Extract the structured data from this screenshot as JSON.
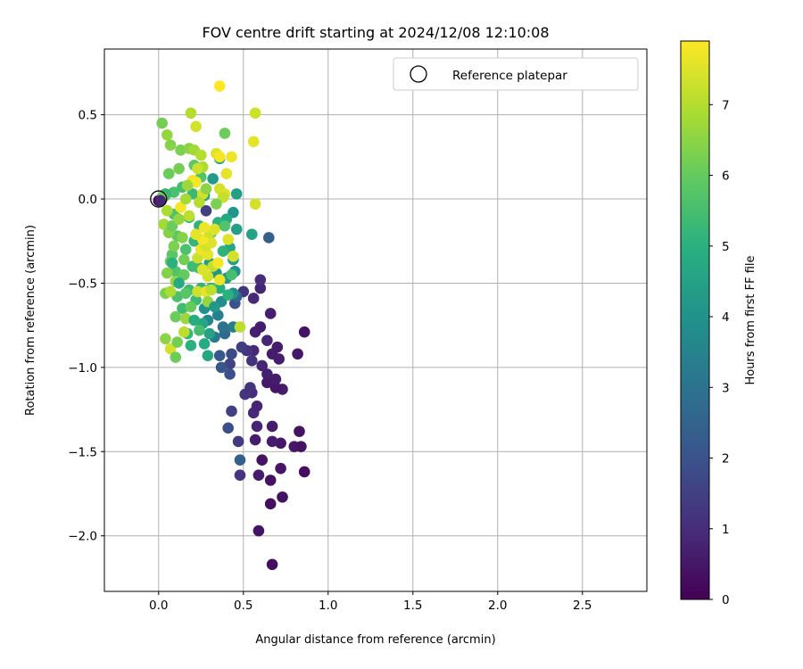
{
  "chart_data": {
    "type": "scatter",
    "title": "FOV centre drift starting at 2024/12/08 12:10:08",
    "xlabel": "Angular distance from reference (arcmin)",
    "ylabel": "Rotation from reference (arcmin)",
    "xlim": [
      -0.32,
      2.88
    ],
    "ylim": [
      -2.33,
      0.89
    ],
    "x_ticks": [
      0.0,
      0.5,
      1.0,
      1.5,
      2.0,
      2.5
    ],
    "x_tick_labels": [
      "0.0",
      "0.5",
      "1.0",
      "1.5",
      "2.0",
      "2.5"
    ],
    "y_ticks": [
      0.5,
      0.0,
      -0.5,
      -1.0,
      -1.5,
      -2.0
    ],
    "y_tick_labels": [
      "0.5",
      "0.0",
      "−0.5",
      "−1.0",
      "−1.5",
      "−2.0"
    ],
    "grid": true,
    "legend": {
      "placement": "top-right",
      "entries": [
        {
          "label": "Reference platepar",
          "marker": "open-circle"
        }
      ]
    },
    "reference_point": {
      "x": 0.0,
      "y": 0.0
    },
    "colorbar": {
      "label": "Hours from first FF file",
      "range": [
        0,
        7.9
      ],
      "ticks": [
        0,
        1,
        2,
        3,
        4,
        5,
        6,
        7
      ],
      "colormap": "viridis"
    },
    "points": [
      {
        "x": 0.0,
        "y": -0.01,
        "h": 0.05
      },
      {
        "x": 0.67,
        "y": -2.17,
        "h": 0.3
      },
      {
        "x": 0.59,
        "y": -1.97,
        "h": 0.4
      },
      {
        "x": 0.66,
        "y": -1.81,
        "h": 0.3
      },
      {
        "x": 0.73,
        "y": -1.77,
        "h": 0.4
      },
      {
        "x": 0.66,
        "y": -1.67,
        "h": 0.4
      },
      {
        "x": 0.59,
        "y": -1.64,
        "h": 0.6
      },
      {
        "x": 0.86,
        "y": -1.62,
        "h": 0.3
      },
      {
        "x": 0.72,
        "y": -1.6,
        "h": 0.5
      },
      {
        "x": 0.61,
        "y": -1.55,
        "h": 0.4
      },
      {
        "x": 0.8,
        "y": -1.47,
        "h": 0.5
      },
      {
        "x": 0.84,
        "y": -1.47,
        "h": 0.4
      },
      {
        "x": 0.72,
        "y": -1.45,
        "h": 0.5
      },
      {
        "x": 0.67,
        "y": -1.44,
        "h": 0.6
      },
      {
        "x": 0.57,
        "y": -1.43,
        "h": 0.6
      },
      {
        "x": 0.83,
        "y": -1.38,
        "h": 0.4
      },
      {
        "x": 0.67,
        "y": -1.35,
        "h": 0.6
      },
      {
        "x": 0.58,
        "y": -1.35,
        "h": 0.8
      },
      {
        "x": 0.56,
        "y": -1.27,
        "h": 0.9
      },
      {
        "x": 0.58,
        "y": -1.23,
        "h": 0.8
      },
      {
        "x": 0.73,
        "y": -1.13,
        "h": 0.6
      },
      {
        "x": 0.69,
        "y": -1.12,
        "h": 0.5
      },
      {
        "x": 0.64,
        "y": -1.09,
        "h": 0.5
      },
      {
        "x": 0.69,
        "y": -1.07,
        "h": 0.6
      },
      {
        "x": 0.55,
        "y": -1.15,
        "h": 1.0
      },
      {
        "x": 0.51,
        "y": -1.16,
        "h": 1.2
      },
      {
        "x": 0.54,
        "y": -1.12,
        "h": 1.1
      },
      {
        "x": 0.64,
        "y": -1.04,
        "h": 0.7
      },
      {
        "x": 0.61,
        "y": -0.99,
        "h": 0.8
      },
      {
        "x": 0.71,
        "y": -0.95,
        "h": 0.6
      },
      {
        "x": 0.82,
        "y": -0.92,
        "h": 0.5
      },
      {
        "x": 0.67,
        "y": -0.92,
        "h": 0.6
      },
      {
        "x": 0.56,
        "y": -0.9,
        "h": 0.9
      },
      {
        "x": 0.52,
        "y": -0.9,
        "h": 1.2
      },
      {
        "x": 0.7,
        "y": -0.88,
        "h": 0.6
      },
      {
        "x": 0.64,
        "y": -0.84,
        "h": 0.8
      },
      {
        "x": 0.55,
        "y": -0.96,
        "h": 1.1
      },
      {
        "x": 0.57,
        "y": -0.79,
        "h": 0.7
      },
      {
        "x": 0.6,
        "y": -0.76,
        "h": 0.6
      },
      {
        "x": 0.86,
        "y": -0.79,
        "h": 0.4
      },
      {
        "x": 0.66,
        "y": -0.68,
        "h": 0.7
      },
      {
        "x": 0.56,
        "y": -0.59,
        "h": 0.9
      },
      {
        "x": 0.6,
        "y": -0.53,
        "h": 0.8
      },
      {
        "x": 0.6,
        "y": -0.48,
        "h": 1.0
      },
      {
        "x": 0.5,
        "y": -0.55,
        "h": 1.2
      },
      {
        "x": 0.42,
        "y": -0.98,
        "h": 1.6
      },
      {
        "x": 0.36,
        "y": -0.93,
        "h": 2.2
      },
      {
        "x": 0.43,
        "y": -0.92,
        "h": 1.8
      },
      {
        "x": 0.49,
        "y": -0.88,
        "h": 1.4
      },
      {
        "x": 0.42,
        "y": -1.04,
        "h": 1.9
      },
      {
        "x": 0.37,
        "y": -1.0,
        "h": 2.1
      },
      {
        "x": 0.43,
        "y": -1.26,
        "h": 1.5
      },
      {
        "x": 0.41,
        "y": -1.36,
        "h": 1.9
      },
      {
        "x": 0.47,
        "y": -1.44,
        "h": 1.3
      },
      {
        "x": 0.48,
        "y": -1.55,
        "h": 2.4
      },
      {
        "x": 0.48,
        "y": -1.64,
        "h": 1.2
      },
      {
        "x": 0.65,
        "y": -0.23,
        "h": 2.4
      },
      {
        "x": 0.55,
        "y": -0.21,
        "h": 4.5
      },
      {
        "x": 0.45,
        "y": -0.62,
        "h": 2.0
      },
      {
        "x": 0.46,
        "y": -0.58,
        "h": 2.6
      },
      {
        "x": 0.39,
        "y": -0.8,
        "h": 2.7
      },
      {
        "x": 0.33,
        "y": -0.82,
        "h": 3.2
      },
      {
        "x": 0.38,
        "y": -0.76,
        "h": 3.0
      },
      {
        "x": 0.44,
        "y": -0.76,
        "h": 3.3
      },
      {
        "x": 0.35,
        "y": -0.69,
        "h": 3.4
      },
      {
        "x": 0.29,
        "y": -0.72,
        "h": 3.6
      },
      {
        "x": 0.27,
        "y": -0.65,
        "h": 4.0
      },
      {
        "x": 0.37,
        "y": -0.61,
        "h": 3.8
      },
      {
        "x": 0.44,
        "y": -0.56,
        "h": 3.9
      },
      {
        "x": 0.4,
        "y": -0.47,
        "h": 4.2
      },
      {
        "x": 0.34,
        "y": -0.44,
        "h": 4.1
      },
      {
        "x": 0.45,
        "y": -0.43,
        "h": 4.0
      },
      {
        "x": 0.3,
        "y": -0.38,
        "h": 4.4
      },
      {
        "x": 0.44,
        "y": -0.36,
        "h": 4.3
      },
      {
        "x": 0.42,
        "y": -0.29,
        "h": 4.6
      },
      {
        "x": 0.46,
        "y": -0.18,
        "h": 4.4
      },
      {
        "x": 0.44,
        "y": -0.08,
        "h": 4.1
      },
      {
        "x": 0.4,
        "y": -0.12,
        "h": 4.7
      },
      {
        "x": 0.46,
        "y": 0.03,
        "h": 4.4
      },
      {
        "x": 0.32,
        "y": 0.12,
        "h": 4.3
      },
      {
        "x": 0.36,
        "y": 0.24,
        "h": 4.5
      },
      {
        "x": 0.27,
        "y": 0.02,
        "h": 4.8
      },
      {
        "x": 0.28,
        "y": -0.07,
        "h": 1.5
      },
      {
        "x": 0.35,
        "y": -0.14,
        "h": 5.0
      },
      {
        "x": 0.31,
        "y": -0.2,
        "h": 5.3
      },
      {
        "x": 0.38,
        "y": -0.31,
        "h": 5.1
      },
      {
        "x": 0.24,
        "y": -0.41,
        "h": 5.2
      },
      {
        "x": 0.36,
        "y": -0.53,
        "h": 4.9
      },
      {
        "x": 0.31,
        "y": -0.53,
        "h": 5.0
      },
      {
        "x": 0.25,
        "y": -0.53,
        "h": 5.1
      },
      {
        "x": 0.22,
        "y": -0.6,
        "h": 5.3
      },
      {
        "x": 0.26,
        "y": -0.74,
        "h": 4.6
      },
      {
        "x": 0.3,
        "y": -0.8,
        "h": 4.5
      },
      {
        "x": 0.19,
        "y": -0.87,
        "h": 5.0
      },
      {
        "x": 0.27,
        "y": -0.86,
        "h": 4.8
      },
      {
        "x": 0.29,
        "y": -0.93,
        "h": 4.7
      },
      {
        "x": 0.24,
        "y": -0.78,
        "h": 5.5
      },
      {
        "x": 0.17,
        "y": -0.8,
        "h": 5.2
      },
      {
        "x": 0.14,
        "y": -0.65,
        "h": 5.4
      },
      {
        "x": 0.11,
        "y": -0.58,
        "h": 5.6
      },
      {
        "x": 0.18,
        "y": -0.54,
        "h": 5.3
      },
      {
        "x": 0.13,
        "y": -0.46,
        "h": 5.5
      },
      {
        "x": 0.1,
        "y": -0.43,
        "h": 5.7
      },
      {
        "x": 0.2,
        "y": -0.4,
        "h": 5.4
      },
      {
        "x": 0.16,
        "y": -0.3,
        "h": 5.6
      },
      {
        "x": 0.08,
        "y": -0.33,
        "h": 5.8
      },
      {
        "x": 0.11,
        "y": -0.22,
        "h": 5.9
      },
      {
        "x": 0.21,
        "y": -0.25,
        "h": 5.2
      },
      {
        "x": 0.24,
        "y": -0.16,
        "h": 5.1
      },
      {
        "x": 0.18,
        "y": -0.11,
        "h": 5.4
      },
      {
        "x": 0.09,
        "y": -0.09,
        "h": 5.7
      },
      {
        "x": 0.04,
        "y": 0.02,
        "h": 5.9
      },
      {
        "x": 0.09,
        "y": 0.04,
        "h": 5.6
      },
      {
        "x": 0.14,
        "y": 0.07,
        "h": 5.5
      },
      {
        "x": 0.2,
        "y": 0.03,
        "h": 5.3
      },
      {
        "x": 0.25,
        "y": 0.13,
        "h": 5.7
      },
      {
        "x": 0.21,
        "y": 0.2,
        "h": 5.9
      },
      {
        "x": 0.12,
        "y": 0.18,
        "h": 6.2
      },
      {
        "x": 0.06,
        "y": 0.15,
        "h": 6.1
      },
      {
        "x": 0.13,
        "y": 0.29,
        "h": 6.3
      },
      {
        "x": 0.07,
        "y": 0.32,
        "h": 6.4
      },
      {
        "x": 0.05,
        "y": 0.38,
        "h": 6.6
      },
      {
        "x": 0.02,
        "y": 0.45,
        "h": 6.2
      },
      {
        "x": 0.18,
        "y": 0.3,
        "h": 6.5
      },
      {
        "x": 0.21,
        "y": 0.29,
        "h": 6.8
      },
      {
        "x": 0.25,
        "y": 0.26,
        "h": 7.0
      },
      {
        "x": 0.19,
        "y": 0.51,
        "h": 7.0
      },
      {
        "x": 0.22,
        "y": 0.43,
        "h": 7.4
      },
      {
        "x": 0.39,
        "y": 0.39,
        "h": 6.1
      },
      {
        "x": 0.36,
        "y": 0.67,
        "h": 7.9
      },
      {
        "x": 0.57,
        "y": 0.51,
        "h": 7.3
      },
      {
        "x": 0.56,
        "y": 0.34,
        "h": 7.6
      },
      {
        "x": 0.34,
        "y": 0.27,
        "h": 7.5
      },
      {
        "x": 0.36,
        "y": 0.25,
        "h": 7.8
      },
      {
        "x": 0.43,
        "y": 0.25,
        "h": 7.7
      },
      {
        "x": 0.4,
        "y": 0.15,
        "h": 7.6
      },
      {
        "x": 0.26,
        "y": 0.19,
        "h": 6.9
      },
      {
        "x": 0.23,
        "y": 0.18,
        "h": 7.3
      },
      {
        "x": 0.2,
        "y": 0.11,
        "h": 7.7
      },
      {
        "x": 0.22,
        "y": 0.1,
        "h": 7.8
      },
      {
        "x": 0.36,
        "y": 0.06,
        "h": 7.4
      },
      {
        "x": 0.39,
        "y": 0.03,
        "h": 7.5
      },
      {
        "x": 0.38,
        "y": 0.01,
        "h": 7.2
      },
      {
        "x": 0.26,
        "y": 0.03,
        "h": 7.4
      },
      {
        "x": 0.57,
        "y": -0.03,
        "h": 7.4
      },
      {
        "x": 0.13,
        "y": -0.05,
        "h": 7.8
      },
      {
        "x": 0.18,
        "y": -0.1,
        "h": 7.1
      },
      {
        "x": 0.05,
        "y": -0.07,
        "h": 6.9
      },
      {
        "x": 0.03,
        "y": -0.15,
        "h": 6.8
      },
      {
        "x": 0.06,
        "y": -0.2,
        "h": 6.4
      },
      {
        "x": 0.08,
        "y": -0.16,
        "h": 6.1
      },
      {
        "x": 0.09,
        "y": -0.28,
        "h": 6.3
      },
      {
        "x": 0.07,
        "y": -0.37,
        "h": 6.0
      },
      {
        "x": 0.05,
        "y": -0.44,
        "h": 6.4
      },
      {
        "x": 0.1,
        "y": -0.49,
        "h": 6.6
      },
      {
        "x": 0.04,
        "y": -0.56,
        "h": 6.3
      },
      {
        "x": 0.07,
        "y": -0.55,
        "h": 6.9
      },
      {
        "x": 0.1,
        "y": -0.7,
        "h": 6.1
      },
      {
        "x": 0.16,
        "y": -0.71,
        "h": 6.7
      },
      {
        "x": 0.15,
        "y": -0.79,
        "h": 7.1
      },
      {
        "x": 0.04,
        "y": -0.83,
        "h": 6.5
      },
      {
        "x": 0.07,
        "y": -0.89,
        "h": 7.4
      },
      {
        "x": 0.11,
        "y": -0.85,
        "h": 6.2
      },
      {
        "x": 0.1,
        "y": -0.94,
        "h": 6.1
      },
      {
        "x": 0.23,
        "y": -0.55,
        "h": 7.3
      },
      {
        "x": 0.28,
        "y": -0.55,
        "h": 7.6
      },
      {
        "x": 0.31,
        "y": -0.54,
        "h": 7.1
      },
      {
        "x": 0.36,
        "y": -0.48,
        "h": 7.7
      },
      {
        "x": 0.29,
        "y": -0.46,
        "h": 7.4
      },
      {
        "x": 0.26,
        "y": -0.42,
        "h": 7.5
      },
      {
        "x": 0.32,
        "y": -0.4,
        "h": 7.2
      },
      {
        "x": 0.35,
        "y": -0.38,
        "h": 7.8
      },
      {
        "x": 0.23,
        "y": -0.35,
        "h": 7.3
      },
      {
        "x": 0.29,
        "y": -0.33,
        "h": 7.6
      },
      {
        "x": 0.25,
        "y": -0.3,
        "h": 7.7
      },
      {
        "x": 0.28,
        "y": -0.28,
        "h": 7.4
      },
      {
        "x": 0.31,
        "y": -0.26,
        "h": 7.5
      },
      {
        "x": 0.26,
        "y": -0.24,
        "h": 7.8
      },
      {
        "x": 0.22,
        "y": -0.21,
        "h": 7.6
      },
      {
        "x": 0.3,
        "y": -0.2,
        "h": 7.3
      },
      {
        "x": 0.33,
        "y": -0.18,
        "h": 7.5
      },
      {
        "x": 0.27,
        "y": -0.17,
        "h": 7.7
      },
      {
        "x": 0.41,
        "y": -0.24,
        "h": 7.5
      },
      {
        "x": 0.44,
        "y": -0.34,
        "h": 7.4
      },
      {
        "x": 0.48,
        "y": -0.76,
        "h": 7.1
      },
      {
        "x": 0.29,
        "y": -0.61,
        "h": 6.6
      },
      {
        "x": 0.19,
        "y": -0.64,
        "h": 6.0
      },
      {
        "x": 0.16,
        "y": -0.56,
        "h": 5.8
      },
      {
        "x": 0.15,
        "y": -0.45,
        "h": 6.0
      },
      {
        "x": 0.15,
        "y": -0.36,
        "h": 6.2
      },
      {
        "x": 0.14,
        "y": -0.23,
        "h": 6.4
      },
      {
        "x": 0.12,
        "y": -0.12,
        "h": 6.6
      },
      {
        "x": 0.16,
        "y": 0.0,
        "h": 6.8
      },
      {
        "x": 0.17,
        "y": 0.08,
        "h": 6.7
      },
      {
        "x": 0.24,
        "y": -0.02,
        "h": 7.0
      },
      {
        "x": 0.28,
        "y": 0.06,
        "h": 6.5
      },
      {
        "x": 0.34,
        "y": -0.03,
        "h": 6.3
      },
      {
        "x": 0.39,
        "y": -0.16,
        "h": 5.7
      },
      {
        "x": 0.43,
        "y": -0.45,
        "h": 5.5
      },
      {
        "x": 0.41,
        "y": -0.57,
        "h": 5.0
      },
      {
        "x": 0.33,
        "y": -0.64,
        "h": 4.2
      },
      {
        "x": 0.21,
        "y": -0.72,
        "h": 4.9
      },
      {
        "x": 0.12,
        "y": -0.5,
        "h": 4.8
      },
      {
        "x": 0.08,
        "y": -0.38,
        "h": 5.0
      },
      {
        "x": 0.04,
        "y": 0.03,
        "h": 5.2
      },
      {
        "x": 0.02,
        "y": 0.01,
        "h": 6.0
      },
      {
        "x": 0.01,
        "y": -0.01,
        "h": 0.8
      }
    ]
  }
}
